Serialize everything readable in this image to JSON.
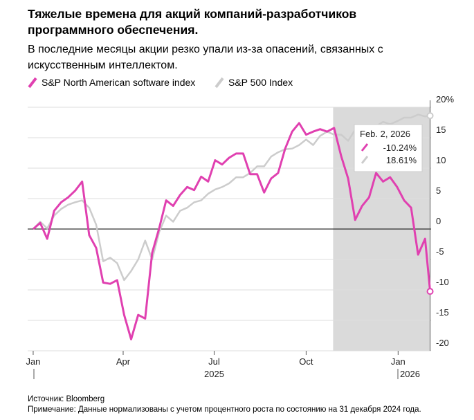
{
  "chart_data": {
    "type": "line",
    "title_lines": [
      "Тяжелые времена для акций компаний-разработчиков",
      "программного обеспечения."
    ],
    "subtitle_lines": [
      "В последние месяцы акции резко упали из-за опасений, связанных с",
      "искусственным интеллектом."
    ],
    "x": [
      0,
      7,
      14,
      21,
      28,
      35,
      42,
      49,
      56,
      63,
      70,
      77,
      84,
      91,
      98,
      105,
      112,
      119,
      126,
      133,
      140,
      147,
      154,
      161,
      168,
      175,
      182,
      189,
      196,
      203,
      210,
      217,
      224,
      231,
      238,
      245,
      252,
      259,
      266,
      273,
      280,
      287,
      294,
      301,
      308,
      315,
      322,
      329,
      336,
      343,
      350,
      357,
      364,
      371,
      378,
      385,
      392,
      397
    ],
    "series": [
      {
        "name": "S&P North American software index",
        "color": "#e040b0",
        "values": [
          0,
          1.0,
          -1.6,
          3.0,
          4.4,
          5.2,
          6.3,
          7.8,
          -1.0,
          -3.1,
          -8.8,
          -9.0,
          -8.4,
          -14.1,
          -18.1,
          -14.1,
          -14.7,
          -3.9,
          0.1,
          4.7,
          3.8,
          5.6,
          6.9,
          6.4,
          8.6,
          7.8,
          11.3,
          10.6,
          11.7,
          12.4,
          12.4,
          9.0,
          9.0,
          6.0,
          8.3,
          9.2,
          13.2,
          16.0,
          17.4,
          15.5,
          16.0,
          16.4,
          16.0,
          16.6,
          12.0,
          8.3,
          1.5,
          3.8,
          5.2,
          9.2,
          7.8,
          8.5,
          6.9,
          4.7,
          3.5,
          -4.2,
          -1.6,
          -10.24
        ]
      },
      {
        "name": "S&P 500 Index",
        "color": "#cccccc",
        "values": [
          0,
          1.2,
          0.1,
          2.2,
          3.3,
          4.0,
          4.4,
          4.7,
          3.5,
          0.7,
          -5.3,
          -4.7,
          -5.6,
          -8.4,
          -6.9,
          -5.0,
          -1.9,
          -5.0,
          -0.5,
          2.2,
          1.2,
          3.0,
          3.5,
          4.4,
          4.7,
          5.8,
          6.5,
          6.9,
          7.5,
          8.5,
          8.5,
          9.2,
          10.3,
          10.3,
          11.9,
          12.6,
          13.1,
          13.2,
          13.8,
          14.7,
          13.8,
          15.3,
          16.0,
          15.5,
          15.5,
          14.5,
          16.3,
          15.6,
          16.0,
          16.9,
          17.6,
          17.2,
          17.7,
          18.3,
          18.3,
          18.8,
          18.5,
          18.61
        ]
      }
    ],
    "xlim": [
      -5.5,
      398
    ],
    "xticks": [
      {
        "value": 0,
        "label": "Jan"
      },
      {
        "value": 90,
        "label": "Apr"
      },
      {
        "value": 181,
        "label": "Jul"
      },
      {
        "value": 273,
        "label": "Oct"
      },
      {
        "value": 365,
        "label": "Jan"
      }
    ],
    "year_labels": [
      "2025",
      "2026"
    ],
    "ylim": [
      -20,
      20
    ],
    "yticks": [
      {
        "value": 20,
        "label": "20%"
      },
      15,
      10,
      5,
      0,
      -5,
      -10,
      -15,
      -20
    ],
    "grid": true,
    "highlight_range": [
      300,
      397
    ],
    "tooltip": {
      "label": "Feb. 2, 2026",
      "value_labels": [
        "-10.24%",
        "18.61%"
      ]
    },
    "source": "Источник: Bloomberg",
    "note": "Примечание: Данные нормализованы с учетом процентного роста по состоянию на 31 декабря 2024 года."
  }
}
